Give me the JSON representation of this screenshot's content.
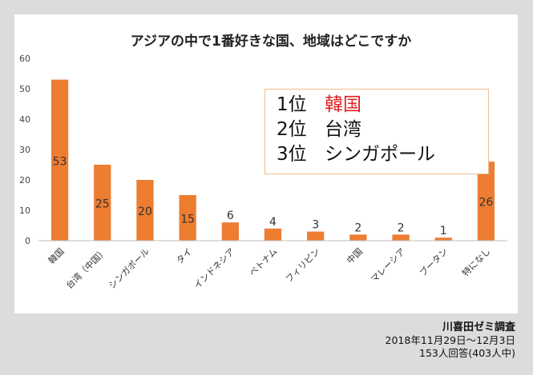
{
  "chart_data": {
    "type": "bar",
    "title": "アジアの中で1番好きな国、地域はどこですか",
    "categories": [
      "韓国",
      "台湾（中国）",
      "シンガポール",
      "タイ",
      "インドネシア",
      "ベトナム",
      "フィリピン",
      "中国",
      "マレーシア",
      "ブータン",
      "特になし"
    ],
    "values": [
      53,
      25,
      20,
      15,
      6,
      4,
      3,
      2,
      2,
      1,
      26
    ],
    "data_labels": [
      "53",
      "25",
      "20",
      "15",
      "6",
      "4",
      "3",
      "2",
      "2",
      "1",
      "26"
    ],
    "ylim": [
      0,
      60
    ],
    "yticks": [
      "0",
      "10",
      "20",
      "30",
      "40",
      "50",
      "60"
    ],
    "xlabel": "",
    "ylabel": "",
    "grid": false,
    "bar_color": "#ed7d31"
  },
  "ranking": [
    {
      "position": "1位",
      "country": "韓国",
      "highlight": true
    },
    {
      "position": "2位",
      "country": "台湾",
      "highlight": false
    },
    {
      "position": "3位",
      "country": "シンガポール",
      "highlight": false
    }
  ],
  "footer": {
    "survey_by": "川喜田ゼミ調査",
    "period": "2018年11月29日～12月3日",
    "respondents": "153人回答(403人中)"
  }
}
